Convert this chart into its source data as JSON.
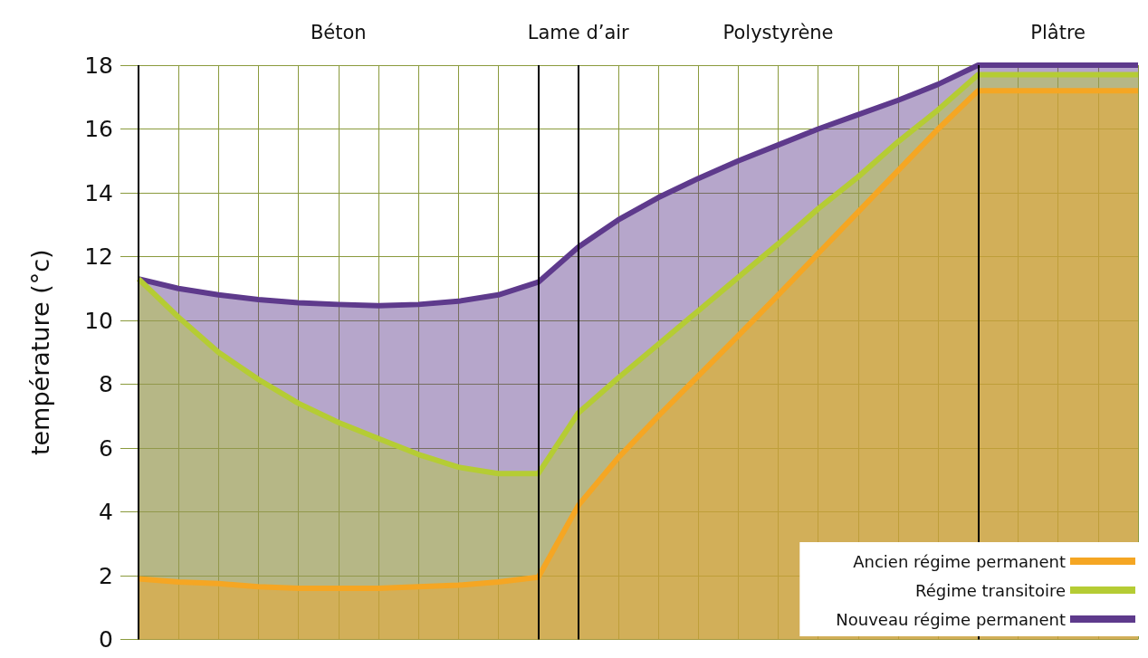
{
  "chart_data": {
    "type": "area",
    "ylabel": "température (°c)",
    "categories": [
      null,
      null,
      null,
      null,
      null,
      null,
      null,
      null,
      null,
      null,
      null,
      null,
      null,
      null,
      null,
      null,
      null,
      null,
      null,
      null,
      null,
      null,
      null,
      null,
      null,
      null
    ],
    "ylim": [
      0,
      18
    ],
    "yticks": [
      0,
      2,
      4,
      6,
      8,
      10,
      12,
      14,
      16,
      18
    ],
    "grid": true,
    "legend": "bottom right",
    "annotations": [
      "Béton",
      "Lame d’air",
      "Polystyrène",
      "Plâtre"
    ],
    "series": [
      {
        "name": "Ancien régime permanent",
        "color": "#f5a623",
        "values": [
          1.9,
          1.8,
          1.75,
          1.65,
          1.6,
          1.6,
          1.6,
          1.65,
          1.7,
          1.8,
          1.95,
          4.2,
          5.7,
          7.0,
          8.26,
          9.52,
          10.8,
          12.1,
          13.4,
          14.7,
          16.0,
          17.2,
          17.2,
          17.2,
          17.2,
          17.2
        ]
      },
      {
        "name": "Régime transitoire",
        "color": "#b5cc34",
        "values": [
          11.3,
          10.1,
          9.0,
          8.15,
          7.4,
          6.8,
          6.3,
          5.8,
          5.4,
          5.2,
          5.2,
          7.1,
          8.2,
          9.25,
          10.3,
          11.35,
          12.4,
          13.5,
          14.5,
          15.6,
          16.6,
          17.7,
          17.7,
          17.7,
          17.7,
          17.7
        ]
      },
      {
        "name": "Nouveau régime permanent",
        "color": "#5e3a8c",
        "values": [
          11.3,
          11.0,
          10.8,
          10.65,
          10.55,
          10.5,
          10.46,
          10.5,
          10.6,
          10.8,
          11.2,
          12.3,
          13.15,
          13.85,
          14.45,
          15.0,
          15.5,
          16.0,
          16.45,
          16.9,
          17.4,
          18,
          18,
          18,
          18,
          18
        ]
      }
    ]
  }
}
